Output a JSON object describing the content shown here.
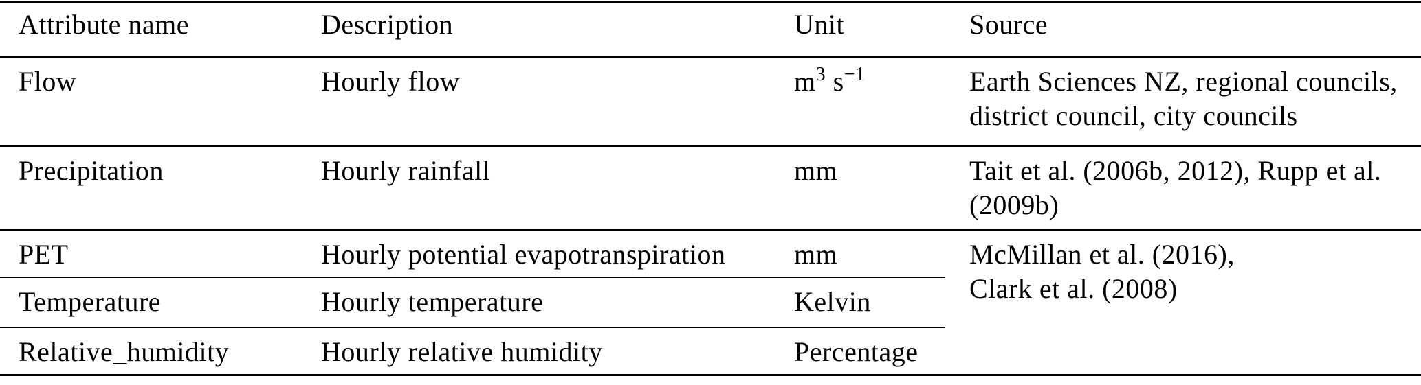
{
  "table": {
    "columns": [
      "Attribute name",
      "Description",
      "Unit",
      "Source"
    ],
    "rows": [
      {
        "attribute": "Flow",
        "description": "Hourly flow",
        "unit_parts": {
          "base1": "m",
          "sup1": "3",
          "base2": " s",
          "sup2": "−1"
        },
        "source_lines": [
          "Earth Sciences NZ, regional councils,",
          "district council, city councils"
        ]
      },
      {
        "attribute": "Precipitation",
        "description": "Hourly rainfall",
        "unit": "mm",
        "source_lines": [
          "Tait et al. (2006b, 2012), Rupp et al.",
          "(2009b)"
        ]
      },
      {
        "attribute": "PET",
        "description": "Hourly potential evapotranspiration",
        "unit": "mm",
        "source_lines": [
          "McMillan et al. (2016),",
          "Clark et al. (2008)"
        ]
      },
      {
        "attribute": "Temperature",
        "description": "Hourly temperature",
        "unit": "Kelvin"
      },
      {
        "attribute": "Relative_humidity",
        "description": "Hourly relative humidity",
        "unit": "Percentage"
      }
    ],
    "colors": {
      "text": "#000000",
      "rule": "#000000",
      "background": "#ffffff"
    }
  }
}
